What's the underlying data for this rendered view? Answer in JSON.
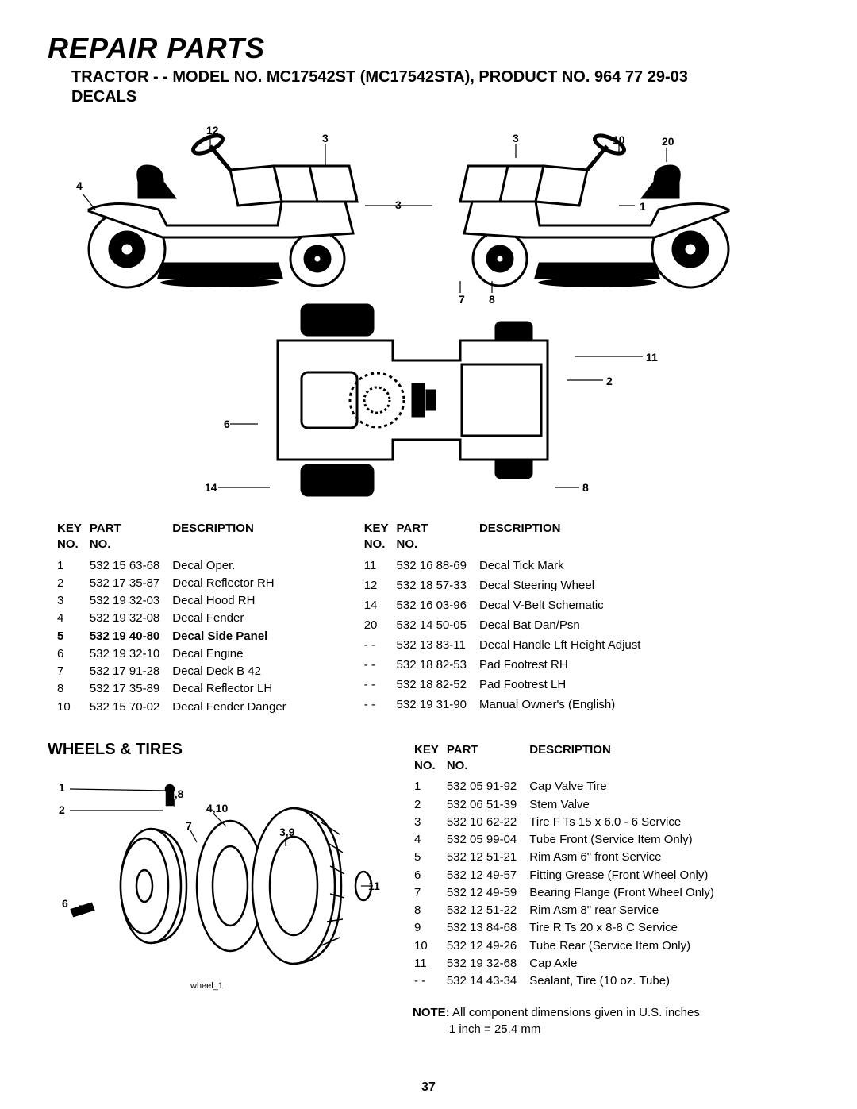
{
  "header": {
    "title": "REPAIR PARTS",
    "subtitle": "TRACTOR - - MODEL NO. MC17542ST (MC17542STA), PRODUCT NO. 964 77 29-03",
    "section": "DECALS"
  },
  "decals_diagram": {
    "callouts_left": [
      "12",
      "4",
      "3",
      "3",
      "6",
      "14"
    ],
    "callouts_right": [
      "3",
      "10",
      "20",
      "1",
      "8",
      "7",
      "11",
      "2",
      "8"
    ]
  },
  "decals_table_headers": {
    "key": "KEY\nNO.",
    "part": "PART\nNO.",
    "desc": "DESCRIPTION"
  },
  "decals_left": [
    {
      "k": "1",
      "p": "532 15 63-68",
      "d": "Decal Oper.",
      "bold": false
    },
    {
      "k": "2",
      "p": "532 17 35-87",
      "d": "Decal Reflector RH",
      "bold": false
    },
    {
      "k": "3",
      "p": "532 19 32-03",
      "d": "Decal Hood RH",
      "bold": false
    },
    {
      "k": "4",
      "p": "532 19 32-08",
      "d": "Decal Fender",
      "bold": false
    },
    {
      "k": "5",
      "p": "532 19 40-80",
      "d": "Decal Side Panel",
      "bold": true
    },
    {
      "k": "6",
      "p": "532 19 32-10",
      "d": "Decal Engine",
      "bold": false
    },
    {
      "k": "7",
      "p": "532 17 91-28",
      "d": "Decal Deck B 42",
      "bold": false
    },
    {
      "k": "8",
      "p": "532 17 35-89",
      "d": "Decal Reflector LH",
      "bold": false
    },
    {
      "k": "10",
      "p": "532 15 70-02",
      "d": "Decal Fender Danger",
      "bold": false
    }
  ],
  "decals_right": [
    {
      "k": "11",
      "p": "532 16 88-69",
      "d": "Decal Tick Mark"
    },
    {
      "k": "12",
      "p": "532 18 57-33",
      "d": "Decal Steering Wheel"
    },
    {
      "k": "14",
      "p": "532 16 03-96",
      "d": "Decal V-Belt  Schematic"
    },
    {
      "k": "20",
      "p": "532 14 50-05",
      "d": "Decal Bat Dan/Psn"
    },
    {
      "k": "- -",
      "p": "532 13 83-11",
      "d": "Decal Handle Lft Height Adjust"
    },
    {
      "k": "- -",
      "p": "532 18 82-53",
      "d": "Pad Footrest RH"
    },
    {
      "k": "- -",
      "p": "532 18 82-52",
      "d": "Pad Footrest LH"
    },
    {
      "k": "- -",
      "p": "532 19 31-90",
      "d": "Manual Owner's (English)"
    }
  ],
  "wheels": {
    "title": "WHEELS & TIRES",
    "callouts": [
      "1",
      "2",
      "5,8",
      "4,10",
      "7",
      "3,9",
      "6",
      "11"
    ],
    "caption": "wheel_1",
    "rows": [
      {
        "k": "1",
        "p": "532 05 91-92",
        "d": "Cap Valve Tire"
      },
      {
        "k": "2",
        "p": "532 06 51-39",
        "d": "Stem Valve"
      },
      {
        "k": "3",
        "p": "532 10 62-22",
        "d": "Tire F Ts 15 x 6.0 - 6 Service"
      },
      {
        "k": "4",
        "p": "532 05 99-04",
        "d": "Tube Front (Service Item Only)"
      },
      {
        "k": "5",
        "p": "532 12 51-21",
        "d": "Rim Asm 6\" front Service"
      },
      {
        "k": "6",
        "p": "532 12 49-57",
        "d": "Fitting Grease (Front Wheel Only)"
      },
      {
        "k": "7",
        "p": "532 12 49-59",
        "d": "Bearing Flange (Front Wheel Only)"
      },
      {
        "k": "8",
        "p": "532 12 51-22",
        "d": "Rim Asm 8\" rear Service"
      },
      {
        "k": "9",
        "p": "532 13 84-68",
        "d": "Tire R Ts 20 x 8-8 C Service"
      },
      {
        "k": "10",
        "p": "532 12 49-26",
        "d": "Tube Rear (Service Item Only)"
      },
      {
        "k": "11",
        "p": "532 19 32-68",
        "d": "Cap Axle"
      },
      {
        "k": "- -",
        "p": "532 14 43-34",
        "d": "Sealant, Tire (10 oz. Tube)"
      }
    ]
  },
  "note": {
    "label": "NOTE:",
    "text": "All component dimensions given in U.S. inches",
    "conv": "1 inch = 25.4 mm"
  },
  "page": "37"
}
